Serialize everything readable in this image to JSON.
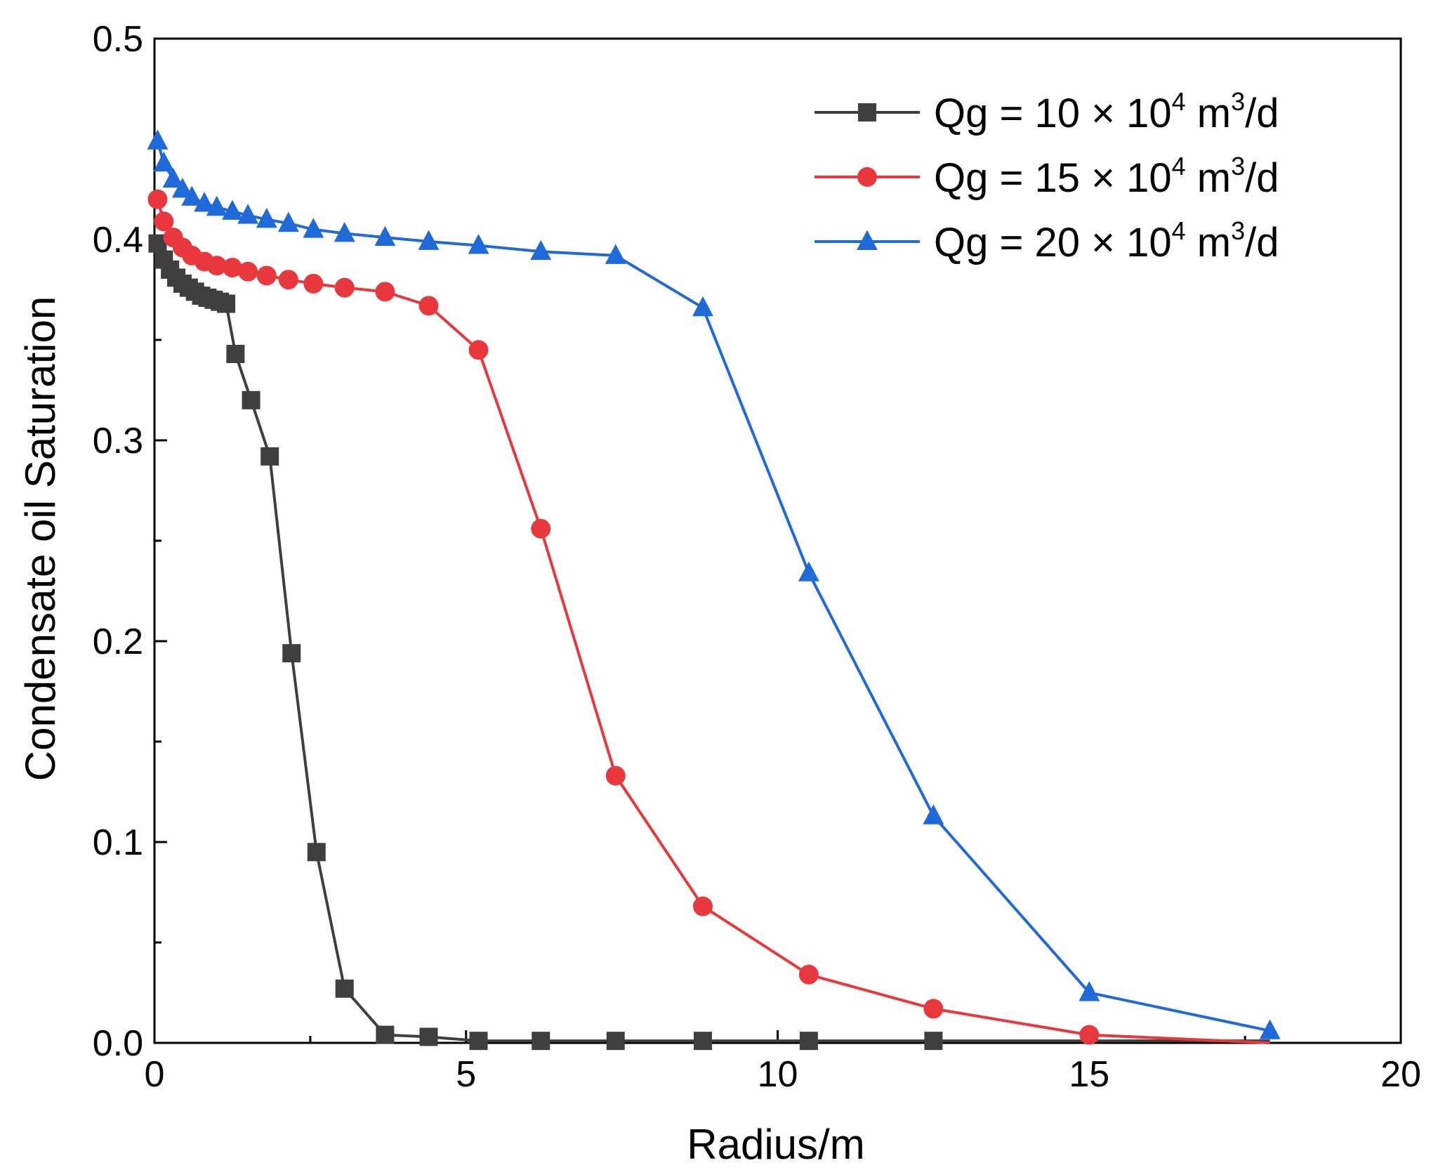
{
  "chart_data": {
    "type": "line",
    "title": "",
    "xlabel": "Radius/m",
    "ylabel": "Condensate oil Saturation",
    "xlim": [
      0,
      20
    ],
    "ylim": [
      0,
      0.5
    ],
    "xticks": [
      0,
      5,
      10,
      15,
      20
    ],
    "xtick_labels": [
      "0",
      "5",
      "10",
      "15",
      "20"
    ],
    "yticks": [
      0,
      0.1,
      0.2,
      0.3,
      0.4,
      0.5
    ],
    "ytick_labels": [
      "0.0",
      "0.1",
      "0.2",
      "0.3",
      "0.4",
      "0.5"
    ],
    "grid": false,
    "legend_position": "top-right",
    "series": [
      {
        "name": "Qg = 10 × 10⁴ m³/d",
        "label_parts": {
          "prefix": "Qg = 10 × 10",
          "exp": "4",
          "unit": " m",
          "unit_exp": "3",
          "suffix": "/d"
        },
        "color": "#3f3f3f",
        "marker": "square",
        "x": [
          0.05,
          0.15,
          0.25,
          0.35,
          0.45,
          0.55,
          0.65,
          0.75,
          0.85,
          0.95,
          1.05,
          1.15,
          1.3,
          1.55,
          1.85,
          2.2,
          2.6,
          3.05,
          3.7,
          4.4,
          5.2,
          6.2,
          7.4,
          8.8,
          10.5,
          12.5,
          15.0,
          17.9
        ],
        "y": [
          0.398,
          0.39,
          0.385,
          0.381,
          0.378,
          0.376,
          0.374,
          0.372,
          0.371,
          0.37,
          0.369,
          0.368,
          0.343,
          0.32,
          0.292,
          0.194,
          0.095,
          0.027,
          0.004,
          0.003,
          0.001,
          0.001,
          0.001,
          0.001,
          0.001,
          0.001,
          0.001,
          0.001
        ],
        "marker_x": [
          0.05,
          0.15,
          0.25,
          0.35,
          0.45,
          0.55,
          0.65,
          0.75,
          0.85,
          0.95,
          1.05,
          1.15,
          1.3,
          1.55,
          1.85,
          2.2,
          2.6,
          3.05,
          3.7,
          4.4,
          5.2,
          6.2,
          7.4,
          8.8,
          10.5,
          12.5
        ],
        "marker_y": [
          0.398,
          0.39,
          0.385,
          0.381,
          0.378,
          0.376,
          0.374,
          0.372,
          0.371,
          0.37,
          0.369,
          0.368,
          0.343,
          0.32,
          0.292,
          0.194,
          0.095,
          0.027,
          0.004,
          0.003,
          0.001,
          0.001,
          0.001,
          0.001,
          0.001,
          0.001
        ]
      },
      {
        "name": "Qg = 15 × 10⁴ m³/d",
        "label_parts": {
          "prefix": "Qg = 15 × 10",
          "exp": "4",
          "unit": " m",
          "unit_exp": "3",
          "suffix": "/d"
        },
        "color": "#e8383d",
        "marker": "circle",
        "x": [
          0.05,
          0.15,
          0.3,
          0.45,
          0.6,
          0.8,
          1.0,
          1.25,
          1.5,
          1.8,
          2.15,
          2.55,
          3.05,
          3.7,
          4.4,
          5.2,
          6.2,
          7.4,
          8.8,
          10.5,
          12.5,
          15.0,
          17.9
        ],
        "y": [
          0.42,
          0.409,
          0.401,
          0.396,
          0.392,
          0.389,
          0.387,
          0.386,
          0.384,
          0.382,
          0.38,
          0.378,
          0.376,
          0.374,
          0.367,
          0.345,
          0.256,
          0.133,
          0.068,
          0.034,
          0.017,
          0.004,
          0.0
        ],
        "marker_x": [
          0.05,
          0.15,
          0.3,
          0.45,
          0.6,
          0.8,
          1.0,
          1.25,
          1.5,
          1.8,
          2.15,
          2.55,
          3.05,
          3.7,
          4.4,
          5.2,
          6.2,
          7.4,
          8.8,
          10.5,
          12.5,
          15.0
        ],
        "marker_y": [
          0.42,
          0.409,
          0.401,
          0.396,
          0.392,
          0.389,
          0.387,
          0.386,
          0.384,
          0.382,
          0.38,
          0.378,
          0.376,
          0.374,
          0.367,
          0.345,
          0.256,
          0.133,
          0.068,
          0.034,
          0.017,
          0.004
        ]
      },
      {
        "name": "Qg = 20 × 10⁴ m³/d",
        "label_parts": {
          "prefix": "Qg = 20 × 10",
          "exp": "4",
          "unit": " m",
          "unit_exp": "3",
          "suffix": "/d"
        },
        "color": "#1f6ad8",
        "marker": "triangle",
        "x": [
          0.05,
          0.15,
          0.3,
          0.45,
          0.6,
          0.8,
          1.0,
          1.25,
          1.5,
          1.8,
          2.15,
          2.55,
          3.05,
          3.7,
          4.4,
          5.2,
          6.2,
          7.4,
          8.8,
          10.5,
          12.5,
          15.0,
          17.9
        ],
        "y": [
          0.449,
          0.438,
          0.43,
          0.425,
          0.421,
          0.418,
          0.416,
          0.414,
          0.412,
          0.41,
          0.408,
          0.405,
          0.403,
          0.401,
          0.399,
          0.397,
          0.394,
          0.392,
          0.366,
          0.234,
          0.113,
          0.025,
          0.006
        ],
        "marker_x": [
          0.05,
          0.15,
          0.3,
          0.45,
          0.6,
          0.8,
          1.0,
          1.25,
          1.5,
          1.8,
          2.15,
          2.55,
          3.05,
          3.7,
          4.4,
          5.2,
          6.2,
          7.4,
          8.8,
          10.5,
          12.5,
          15.0,
          17.9
        ],
        "marker_y": [
          0.449,
          0.438,
          0.43,
          0.425,
          0.421,
          0.418,
          0.416,
          0.414,
          0.412,
          0.41,
          0.408,
          0.405,
          0.403,
          0.401,
          0.399,
          0.397,
          0.394,
          0.392,
          0.366,
          0.234,
          0.113,
          0.025,
          0.006
        ]
      }
    ]
  }
}
